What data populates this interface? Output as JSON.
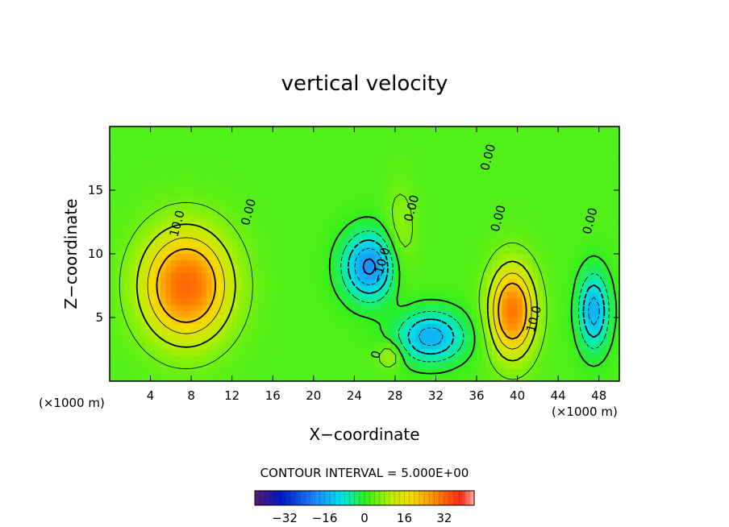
{
  "chart_data": {
    "type": "heatmap",
    "title": "vertical velocity",
    "xlabel": "X−coordinate",
    "ylabel": "Z−coordinate",
    "x_units_label": "(×1000 m)",
    "y_units_label": "(×1000 m)",
    "xlim": [
      0,
      50
    ],
    "ylim": [
      0,
      20
    ],
    "x_ticks": [
      4,
      8,
      12,
      16,
      20,
      24,
      28,
      32,
      36,
      40,
      44,
      48
    ],
    "y_ticks": [
      5,
      10,
      15
    ],
    "contour_interval_label": "CONTOUR INTERVAL = 5.000E+00",
    "colorbar": {
      "range": [
        -44,
        44
      ],
      "ticks": [
        -32,
        -16,
        0,
        16,
        32
      ],
      "tick_labels": [
        "−32",
        "−16",
        "0",
        "16",
        "32"
      ]
    },
    "contour_labels": [
      {
        "text": "10.0",
        "x": 7,
        "y": 12.3
      },
      {
        "text": "0.00",
        "x": 14,
        "y": 13.2
      },
      {
        "text": "0.00",
        "x": 30,
        "y": 13.5
      },
      {
        "text": "0.00",
        "x": 38.5,
        "y": 12.7
      },
      {
        "text": "0.00",
        "x": 37.5,
        "y": 17.5
      },
      {
        "text": "0.00",
        "x": 47.5,
        "y": 12.5
      },
      {
        "text": "−10.0",
        "x": 27,
        "y": 9.0
      },
      {
        "text": "10.0",
        "x": 42,
        "y": 4.8
      },
      {
        "text": "0",
        "x": 26.5,
        "y": 2.0
      }
    ],
    "centers": [
      {
        "x": 7.5,
        "z": 7.5,
        "value": 28,
        "sx": 4.2,
        "sz": 4.2
      },
      {
        "x": 39.5,
        "z": 5.5,
        "value": 26,
        "sx": 2.2,
        "sz": 3.5
      },
      {
        "x": 25.5,
        "z": 9.0,
        "value": -24,
        "sx": 2.6,
        "sz": 2.6
      },
      {
        "x": 31.5,
        "z": 3.5,
        "value": -20,
        "sx": 3.3,
        "sz": 2.0
      },
      {
        "x": 47.5,
        "z": 5.5,
        "value": -20,
        "sx": 1.5,
        "sz": 3.0
      },
      {
        "x": 27.5,
        "z": 2.0,
        "value": 8,
        "sx": 1.2,
        "sz": 1.0
      },
      {
        "x": 28.5,
        "z": 11.0,
        "value": 6,
        "sx": 1.5,
        "sz": 4.0
      }
    ],
    "grid": false
  }
}
